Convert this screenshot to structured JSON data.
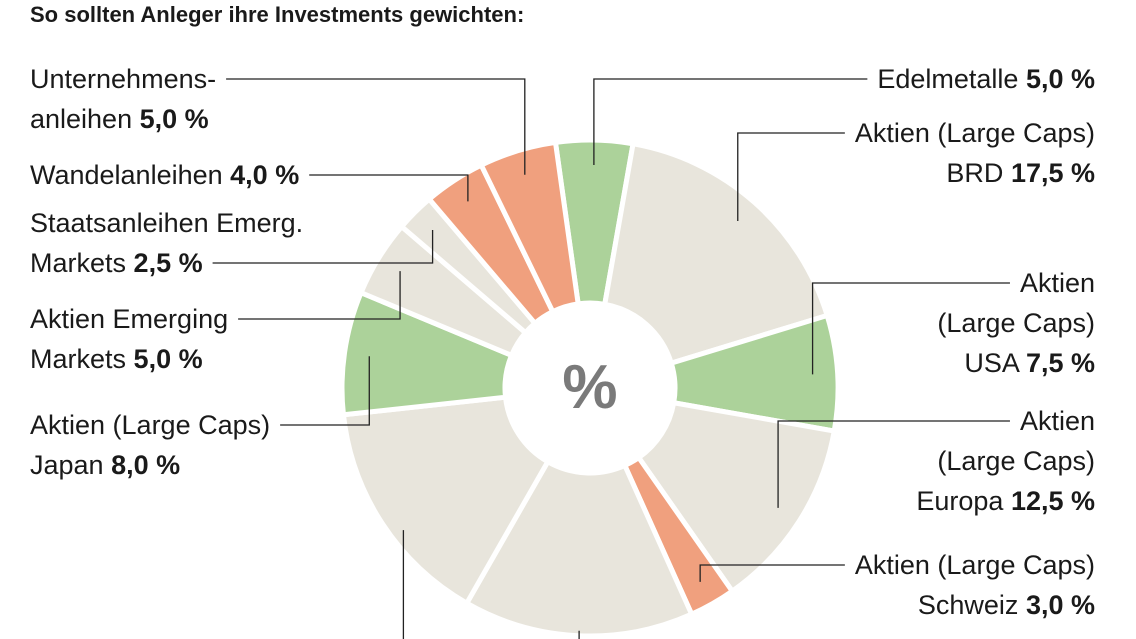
{
  "chart_data": {
    "type": "donut",
    "title": "So sollten Anleger ihre Investments gewichten:",
    "center_label": "%",
    "categories": [
      [
        "Edelmetalle"
      ],
      [
        "Aktien (Large Caps)",
        "BRD"
      ],
      [
        "Aktien",
        "(Large Caps)",
        "USA"
      ],
      [
        "Aktien",
        "(Large Caps)",
        "Europa"
      ],
      [
        "Aktien (Large Caps)",
        "Schweiz"
      ],
      null,
      null,
      [
        "Aktien (Large Caps)",
        "Japan"
      ],
      [
        "Aktien Emerging",
        "Markets"
      ],
      [
        "Staatsanleihen Emerg.",
        "Markets"
      ],
      [
        "Wandelanleihen"
      ],
      [
        "Unternehmens-",
        "anleihen"
      ]
    ],
    "values": [
      5,
      17.5,
      7.5,
      12.5,
      3,
      15,
      15,
      8,
      5,
      2.5,
      4,
      5
    ],
    "value_labels": [
      "5,0 %",
      "17,5 %",
      "7,5 %",
      "12,5 %",
      "3,0 %",
      null,
      null,
      "8,0 %",
      "5,0 %",
      "2,5 %",
      "4,0 %",
      "5,0 %"
    ],
    "colors": [
      "#acd29a",
      "#e8e5dc",
      "#acd29a",
      "#e8e5dc",
      "#f0a07e",
      "#e8e5dc",
      "#e8e5dc",
      "#acd29a",
      "#e8e5dc",
      "#e8e5dc",
      "#f0a07e",
      "#f0a07e"
    ]
  }
}
